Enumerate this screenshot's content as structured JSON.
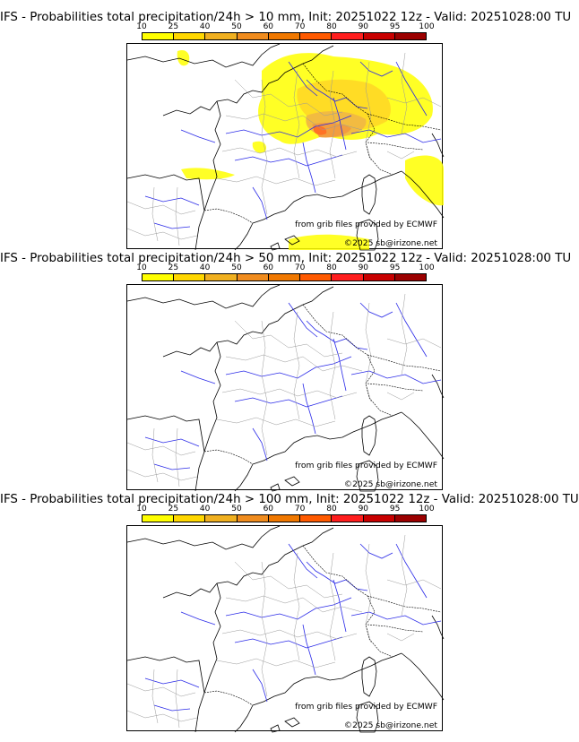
{
  "colorbar": {
    "ticks": [
      "10",
      "25",
      "40",
      "50",
      "60",
      "70",
      "80",
      "90",
      "95",
      "100"
    ],
    "colors": [
      "#ffff00",
      "#ffd700",
      "#f0b020",
      "#f08c1e",
      "#f07800",
      "#ff5a00",
      "#ff1e1e",
      "#c80000",
      "#9b0000",
      "#6e0a0a"
    ]
  },
  "panels": [
    {
      "title": "IFS - Probabilities total precipitation/24h > 10 mm, Init: 20251022 12z - Valid: 20251028:00 TU",
      "attribution": "from grib files provided by ECMWF",
      "copyright": "©2025 sb@irizone.net"
    },
    {
      "title": "IFS - Probabilities total precipitation/24h > 50 mm, Init: 20251022 12z - Valid: 20251028:00 TU",
      "attribution": "from grib files provided by ECMWF",
      "copyright": "©2025 sb@irizone.net"
    },
    {
      "title": "IFS - Probabilities total precipitation/24h > 100 mm, Init: 20251022 12z - Valid: 20251028:00 TU",
      "attribution": "from grib files provided by ECMWF",
      "copyright": "©2025 sb@irizone.net"
    }
  ]
}
